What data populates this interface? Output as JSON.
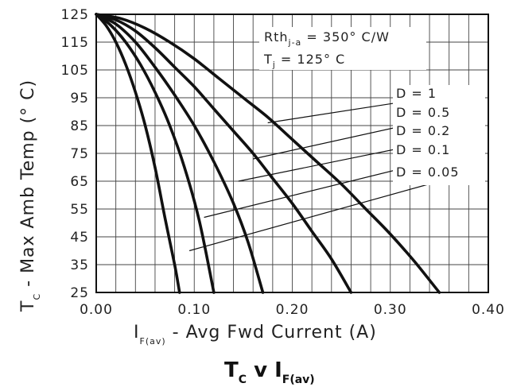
{
  "chart_data": {
    "type": "line",
    "title": {
      "main": "T",
      "sub1": "C",
      "mid": " v I",
      "sub2": "F(av)"
    },
    "xlabel": {
      "pre": "I",
      "sub": "F(av)",
      "post": " - Avg Fwd Current (A)"
    },
    "ylabel": {
      "pre": "T",
      "sub": "C",
      "post": " - Max Amb Temp (° C)"
    },
    "xlim": [
      0,
      0.4
    ],
    "ylim": [
      25,
      125
    ],
    "xticks": [
      "0.00",
      "0.10",
      "0.20",
      "0.30",
      "0.40"
    ],
    "yticks": [
      "25",
      "35",
      "45",
      "55",
      "65",
      "75",
      "85",
      "95",
      "105",
      "115",
      "125"
    ],
    "grid": true,
    "annotations": [
      {
        "pre": "Rth",
        "sub": "j-a",
        "post": " = 350° C/W"
      },
      {
        "pre": "T",
        "sub": "j",
        "post": " = 125° C"
      }
    ],
    "series": [
      {
        "name": "D = 1",
        "x": [
          0.0,
          0.025,
          0.05,
          0.075,
          0.1,
          0.125,
          0.15,
          0.175,
          0.2,
          0.225,
          0.25,
          0.275,
          0.3,
          0.325,
          0.35
        ],
        "y": [
          125,
          123.5,
          120,
          115,
          109,
          102,
          95,
          88,
          80,
          72,
          64,
          55,
          46,
          36,
          25
        ]
      },
      {
        "name": "D = 0.5",
        "x": [
          0.0,
          0.02,
          0.04,
          0.06,
          0.08,
          0.1,
          0.12,
          0.14,
          0.16,
          0.18,
          0.2,
          0.22,
          0.24,
          0.26
        ],
        "y": [
          125,
          123,
          119,
          113,
          106,
          99,
          91,
          83,
          75,
          66,
          57,
          47,
          37,
          25
        ]
      },
      {
        "name": "D = 0.2",
        "x": [
          0.0,
          0.02,
          0.04,
          0.06,
          0.08,
          0.1,
          0.12,
          0.14,
          0.155,
          0.17
        ],
        "y": [
          125,
          121.5,
          115,
          106,
          96,
          85,
          72,
          57,
          43,
          25
        ]
      },
      {
        "name": "D = 0.1",
        "x": [
          0.0,
          0.015,
          0.03,
          0.045,
          0.06,
          0.075,
          0.09,
          0.105,
          0.12
        ],
        "y": [
          125,
          121,
          115,
          107,
          97,
          85,
          70,
          51,
          25
        ]
      },
      {
        "name": "D = 0.05",
        "x": [
          0.0,
          0.01,
          0.02,
          0.03,
          0.04,
          0.05,
          0.06,
          0.07,
          0.08,
          0.085
        ],
        "y": [
          125,
          121,
          115,
          107,
          97,
          85,
          70,
          52,
          35,
          25
        ]
      }
    ],
    "legend": [
      "D =  1",
      "D =  0.5",
      "D =  0.2",
      "D =  0.1",
      "D =  0.05"
    ]
  }
}
